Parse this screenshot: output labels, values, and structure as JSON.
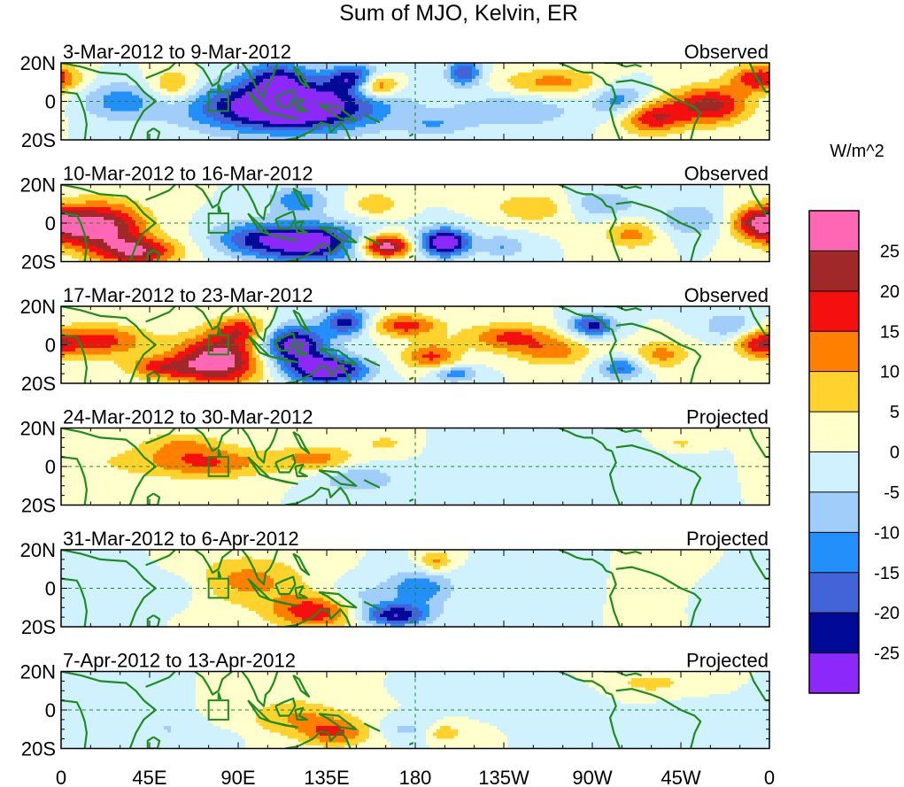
{
  "chart_data": {
    "type": "heatmap",
    "title": "Sum of MJO, Kelvin, ER",
    "colorbar": {
      "unit_label": "W/m^2",
      "tick_labels": [
        "25",
        "20",
        "15",
        "10",
        "5",
        "0",
        "-5",
        "-10",
        "-15",
        "-20",
        "-25"
      ],
      "levels_top_to_bottom": [
        {
          "range": "> 25",
          "color": "#ff66b3"
        },
        {
          "range": "20 to 25",
          "color": "#a02828"
        },
        {
          "range": "15 to 20",
          "color": "#f50f0f"
        },
        {
          "range": "10 to 15",
          "color": "#ff7f00"
        },
        {
          "range": "5 to 10",
          "color": "#ffd22d"
        },
        {
          "range": "0 to 5",
          "color": "#ffffcc"
        },
        {
          "range": "-5 to 0",
          "color": "#d0f2ff"
        },
        {
          "range": "-10 to -5",
          "color": "#a0cdfa"
        },
        {
          "range": "-15 to -10",
          "color": "#238ffa"
        },
        {
          "range": "-20 to -15",
          "color": "#4363d8"
        },
        {
          "range": "-25 to -20",
          "color": "#000a96"
        },
        {
          "range": "< -25",
          "color": "#8c28fa"
        }
      ]
    },
    "x_tick_labels": [
      "0",
      "45E",
      "90E",
      "135E",
      "180",
      "135W",
      "90W",
      "45W",
      "0"
    ],
    "x_ticks_deg": [
      0,
      45,
      90,
      135,
      180,
      225,
      270,
      315,
      360
    ],
    "y_tick_labels": [
      "20N",
      "0",
      "20S"
    ],
    "y_ticks_deg": [
      20,
      0,
      -20
    ],
    "xlim": [
      0,
      360
    ],
    "ylim": [
      -20,
      20
    ],
    "panels": [
      {
        "period": "3-Mar-2012 to 9-Mar-2012",
        "status": "Observed"
      },
      {
        "period": "10-Mar-2012 to 16-Mar-2012",
        "status": "Observed"
      },
      {
        "period": "17-Mar-2012 to 23-Mar-2012",
        "status": "Observed"
      },
      {
        "period": "24-Mar-2012 to 30-Mar-2012",
        "status": "Projected"
      },
      {
        "period": "31-Mar-2012 to 6-Apr-2012",
        "status": "Projected"
      },
      {
        "period": "7-Apr-2012 to 13-Apr-2012",
        "status": "Projected"
      }
    ],
    "box_region": {
      "lon": [
        75,
        85
      ],
      "lat": [
        -5,
        5
      ]
    },
    "reference_lines": {
      "equator_dashed": true,
      "dateline_dashed_lon": 180
    },
    "coastlines_color": "#1e8c1e"
  }
}
